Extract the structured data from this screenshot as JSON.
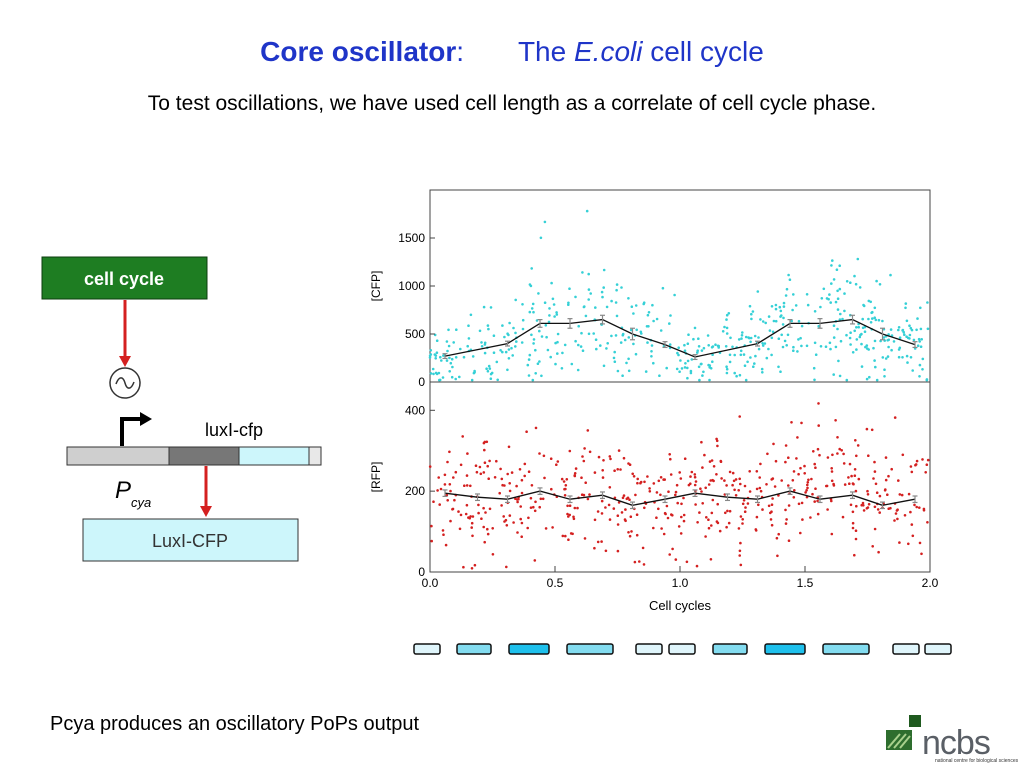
{
  "slide": {
    "title_bold": "Core oscillator",
    "title_colon": ":",
    "title_the": "The",
    "title_italic": "E.coli",
    "title_rest": "cell cycle",
    "subtitle": "To test oscillations, we have used cell length as a correlate  of cell cycle phase.",
    "footer": "Pcya produces an oscillatory PoPs output"
  },
  "diagram": {
    "cell_cycle_label": "cell cycle",
    "gene_label": "luxI-cfp",
    "promoter_label": "P",
    "promoter_subscript": "cya",
    "protein_label": "LuxI-CFP",
    "colors": {
      "cell_cycle_box": "#1e7d22",
      "arrow": "#d42020",
      "gene_grey": "#cfcfcf",
      "gene_dark": "#777777",
      "gene_cyan": "#cdf6fb",
      "protein_box": "#cdf6fb"
    }
  },
  "chart_data": [
    {
      "type": "scatter",
      "ylabel": "[CFP]",
      "xlim": [
        0,
        2.0
      ],
      "ylim": [
        0,
        2000
      ],
      "yticks": [
        0,
        500,
        1000,
        1500
      ],
      "point_color": "#35d0d6",
      "mean_x": [
        0.06,
        0.31,
        0.44,
        0.56,
        0.69,
        0.81,
        0.94,
        1.06,
        1.31,
        1.44,
        1.56,
        1.69,
        1.81,
        1.94
      ],
      "mean_y": [
        270,
        400,
        610,
        610,
        650,
        500,
        390,
        260,
        400,
        610,
        610,
        650,
        500,
        390
      ],
      "err": [
        25,
        25,
        40,
        50,
        45,
        60,
        30,
        25,
        25,
        40,
        50,
        45,
        60,
        30
      ]
    },
    {
      "type": "scatter",
      "ylabel": "[RFP]",
      "xlabel": "Cell cycles",
      "xlim": [
        0,
        2.0
      ],
      "ylim": [
        0,
        470
      ],
      "yticks": [
        0,
        200,
        400
      ],
      "xticks": [
        "0.0",
        "0.5",
        "1.0",
        "1.5",
        "2.0"
      ],
      "point_color": "#d42020",
      "mean_x": [
        0.06,
        0.19,
        0.31,
        0.44,
        0.56,
        0.69,
        0.81,
        0.94,
        1.06,
        1.19,
        1.31,
        1.44,
        1.56,
        1.69,
        1.81,
        1.94
      ],
      "mean_y": [
        195,
        185,
        180,
        200,
        180,
        190,
        165,
        180,
        195,
        185,
        180,
        200,
        180,
        190,
        165,
        180
      ],
      "err": [
        8,
        8,
        8,
        8,
        8,
        8,
        8,
        8,
        8,
        8,
        8,
        8,
        8,
        8,
        8,
        8
      ]
    }
  ],
  "cell_strip": {
    "colors": [
      "#dff5fb",
      "#83dcf0",
      "#1ec0ec",
      "#83dcf0",
      "#dff5fb",
      "#dff5fb",
      "#83dcf0",
      "#1ec0ec",
      "#83dcf0",
      "#dff5fb",
      "#dff5fb"
    ]
  },
  "logo": {
    "name": "ncbs",
    "tagline": "national centre for biological sciences"
  }
}
